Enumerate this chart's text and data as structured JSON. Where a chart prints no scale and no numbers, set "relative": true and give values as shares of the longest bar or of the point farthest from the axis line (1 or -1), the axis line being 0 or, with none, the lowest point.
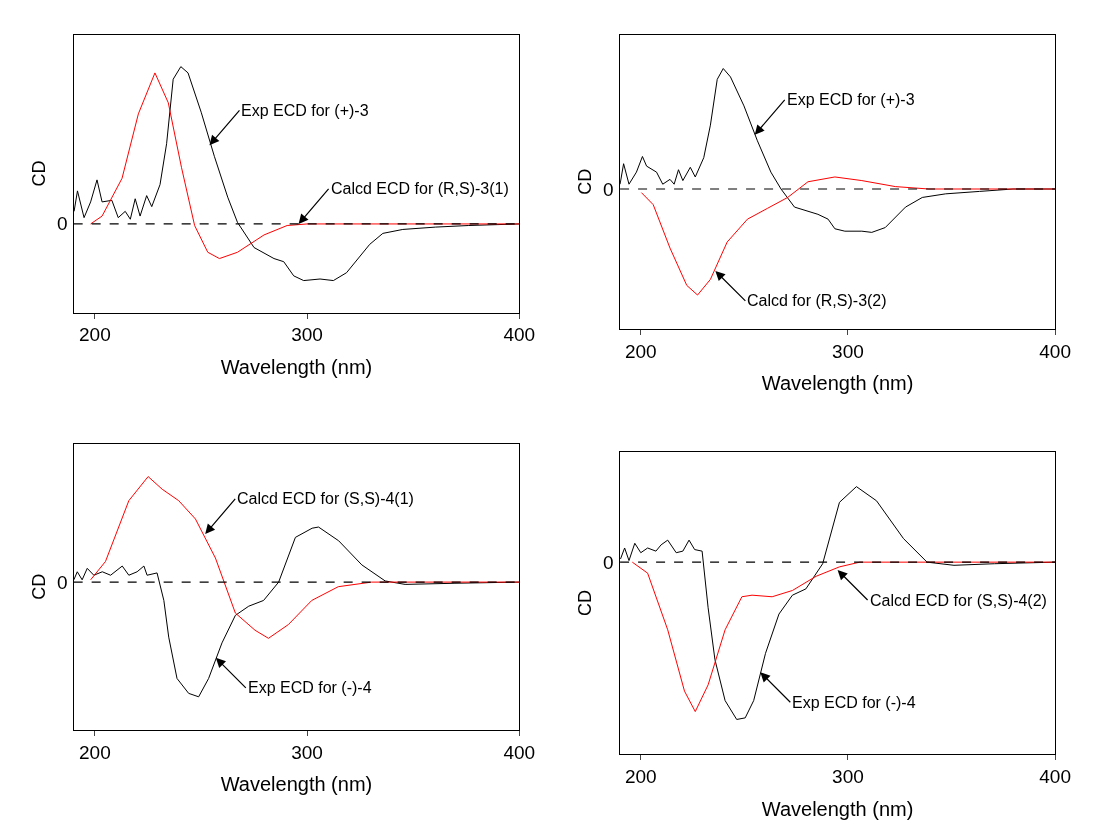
{
  "chart_data": [
    {
      "type": "line",
      "xlabel": "Wavelength (nm)",
      "ylabel": "CD",
      "relative": true,
      "xlim": [
        190,
        400
      ],
      "xticks": [
        200,
        300,
        400
      ],
      "ref_lines": [
        {
          "axis": "y",
          "value": 0,
          "label": "0",
          "line_style": "dashed",
          "color": "#000000"
        }
      ],
      "annotations": [
        {
          "text": "Exp ECD for (+)-3",
          "x": 254,
          "y": 0.5
        },
        {
          "text": "Calcd ECD for (R,S)-3(1)",
          "x": 296,
          "y": 0
        }
      ],
      "series": [
        {
          "color": "#000000",
          "x": [
            190.2,
            191.8,
            194.9,
            198,
            201,
            203.4,
            208,
            211,
            214.3,
            216.7,
            219,
            221.3,
            224.4,
            226.8,
            230.7,
            233.8,
            236.9,
            240.5,
            243.9,
            250.1,
            256.3,
            262.6,
            267.2,
            275,
            284.4,
            289,
            293.7,
            298.4,
            306.1,
            312.4,
            318.6,
            329.5,
            335.7,
            345.1,
            360.6,
            376.2,
            400
          ],
          "values": [
            0.08,
            0.21,
            0.04,
            0.14,
            0.28,
            0.14,
            0.15,
            0.04,
            0.08,
            0.03,
            0.16,
            0.05,
            0.18,
            0.11,
            0.25,
            0.51,
            0.92,
            1.0,
            0.96,
            0.71,
            0.43,
            0.17,
            0.01,
            -0.15,
            -0.22,
            -0.24,
            -0.33,
            -0.36,
            -0.35,
            -0.36,
            -0.31,
            -0.13,
            -0.06,
            -0.035,
            -0.02,
            -0.01,
            0
          ]
        },
        {
          "color": "#ff0000",
          "x": [
            198,
            203.4,
            212.8,
            220.5,
            228.3,
            234.6,
            240.8,
            247,
            253.2,
            258.7,
            267.2,
            279.7,
            290.6,
            300,
            400
          ],
          "values": [
            0,
            0.05,
            0.29,
            0.7,
            0.96,
            0.77,
            0.36,
            -0.01,
            -0.18,
            -0.22,
            -0.18,
            -0.07,
            -0.01,
            0,
            0
          ]
        }
      ]
    },
    {
      "type": "line",
      "xlabel": "Wavelength (nm)",
      "ylabel": "CD",
      "relative": true,
      "xlim": [
        190,
        400
      ],
      "xticks": [
        200,
        300,
        400
      ],
      "ref_lines": [
        {
          "axis": "y",
          "value": 0,
          "label": "0",
          "line_style": "dashed",
          "color": "#000000"
        }
      ],
      "annotations": [
        {
          "text": "Exp ECD for (+)-3",
          "x": 255,
          "y": 0.45
        },
        {
          "text": "Calcd for (R,S)-3(2)",
          "x": 236,
          "y": -0.68
        }
      ],
      "series": [
        {
          "color": "#000000",
          "x": [
            190,
            191.7,
            194.3,
            197.9,
            200.8,
            202.8,
            207.6,
            210.6,
            214.1,
            216.1,
            218.2,
            220.3,
            223.9,
            226.3,
            230.4,
            233.6,
            236.9,
            239.8,
            243.3,
            249.8,
            256.3,
            262.8,
            267.7,
            274.2,
            285.5,
            290.4,
            293.7,
            298.5,
            306.7,
            311.5,
            318,
            327.8,
            335.9,
            347.2,
            363.5,
            379.7,
            400
          ],
          "values": [
            0.04,
            0.21,
            0.04,
            0.14,
            0.27,
            0.19,
            0.14,
            0.04,
            0.08,
            0.04,
            0.16,
            0.07,
            0.18,
            0.1,
            0.26,
            0.53,
            0.91,
            1.0,
            0.93,
            0.69,
            0.4,
            0.14,
            0,
            -0.15,
            -0.21,
            -0.25,
            -0.33,
            -0.35,
            -0.35,
            -0.36,
            -0.32,
            -0.15,
            -0.07,
            -0.04,
            -0.02,
            0,
            0
          ]
        },
        {
          "color": "#ff0000",
          "x": [
            200.3,
            206,
            214.1,
            222.2,
            227.4,
            233.6,
            241.7,
            251.5,
            261.2,
            270.9,
            280.7,
            293.7,
            306.7,
            322.9,
            339.1,
            400
          ],
          "values": [
            -0.03,
            -0.13,
            -0.49,
            -0.8,
            -0.88,
            -0.75,
            -0.44,
            -0.25,
            -0.16,
            -0.07,
            0.06,
            0.1,
            0.07,
            0.02,
            0,
            0
          ]
        }
      ]
    },
    {
      "type": "line",
      "xlabel": "Wavelength (nm)",
      "ylabel": "CD",
      "relative": true,
      "xlim": [
        190,
        400
      ],
      "xticks": [
        200,
        300,
        400
      ],
      "ref_lines": [
        {
          "axis": "y",
          "value": 0,
          "label": "0",
          "line_style": "dashed",
          "color": "#000000"
        }
      ],
      "annotations": [
        {
          "text": "Calcd ECD for (S,S)-4(1)",
          "x": 252,
          "y": 0.42
        },
        {
          "text": "Exp ECD for (-)-4",
          "x": 257,
          "y": -0.66
        }
      ],
      "series": [
        {
          "color": "#000000",
          "x": [
            190.1,
            191.7,
            194,
            196.4,
            199.5,
            203.5,
            207.4,
            212.9,
            216,
            219.9,
            223.1,
            224.6,
            229.3,
            232.5,
            234.8,
            238.7,
            244.2,
            248.9,
            253.6,
            259.9,
            266.2,
            272.5,
            279.5,
            286.6,
            294.5,
            302.4,
            305.4,
            314.9,
            325.8,
            336.8,
            346.2,
            369.7,
            400
          ],
          "values": [
            0.02,
            0.09,
            0.02,
            0.12,
            0.06,
            0.09,
            0.06,
            0.14,
            0.06,
            0.09,
            0.14,
            0.06,
            0.08,
            -0.16,
            -0.48,
            -0.84,
            -0.97,
            -1.0,
            -0.84,
            -0.53,
            -0.29,
            -0.21,
            -0.16,
            0,
            0.39,
            0.47,
            0.48,
            0.36,
            0.15,
            0.01,
            -0.02,
            -0.01,
            0
          ]
        },
        {
          "color": "#ff0000",
          "x": [
            198,
            205,
            216,
            225.1,
            231.7,
            239.5,
            247.4,
            256.8,
            266.2,
            275.5,
            281.8,
            291.2,
            302.2,
            314.7,
            330.4,
            400
          ],
          "values": [
            0.02,
            0.18,
            0.71,
            0.92,
            0.81,
            0.71,
            0.55,
            0.21,
            -0.27,
            -0.42,
            -0.49,
            -0.37,
            -0.16,
            -0.04,
            0,
            0
          ]
        }
      ]
    },
    {
      "type": "line",
      "xlabel": "Wavelength (nm)",
      "ylabel": "CD",
      "relative": true,
      "xlim": [
        190,
        400
      ],
      "xticks": [
        200,
        300,
        400
      ],
      "ref_lines": [
        {
          "axis": "y",
          "value": 0,
          "label": "0",
          "line_style": "dashed",
          "color": "#000000"
        }
      ],
      "annotations": [
        {
          "text": "Calcd ECD for (S,S)-4(2)",
          "x": 295,
          "y": -0.05
        },
        {
          "text": "Exp ECD for (-)-4",
          "x": 257.7,
          "y": -0.7
        }
      ],
      "series": [
        {
          "color": "#000000",
          "x": [
            190.2,
            192.2,
            194.3,
            197.1,
            200,
            203.3,
            207.3,
            209.8,
            213,
            217.1,
            220.3,
            223.3,
            226,
            229.6,
            232.5,
            235.8,
            240.7,
            246.3,
            250.4,
            254.5,
            260.2,
            266.7,
            273.2,
            279.7,
            287.8,
            295.9,
            304.1,
            313.8,
            326.8,
            338.2,
            351.2,
            370.7,
            400
          ],
          "values": [
            0.02,
            0.09,
            0.01,
            0.12,
            0.06,
            0.09,
            0.07,
            0.11,
            0.14,
            0.06,
            0.07,
            0.14,
            0.08,
            0.07,
            -0.29,
            -0.62,
            -0.88,
            -1.0,
            -0.99,
            -0.88,
            -0.58,
            -0.33,
            -0.21,
            -0.17,
            -0.01,
            0.38,
            0.48,
            0.39,
            0.15,
            0,
            -0.02,
            -0.01,
            0
          ]
        },
        {
          "color": "#ff0000",
          "x": [
            195.9,
            203.3,
            213,
            221.1,
            226.3,
            232.5,
            240.7,
            248.8,
            253.7,
            263.4,
            273.2,
            284.6,
            295.9,
            305.7,
            400
          ],
          "values": [
            0,
            -0.07,
            -0.43,
            -0.82,
            -0.95,
            -0.78,
            -0.43,
            -0.22,
            -0.21,
            -0.22,
            -0.18,
            -0.09,
            -0.03,
            0,
            0
          ]
        }
      ]
    }
  ]
}
